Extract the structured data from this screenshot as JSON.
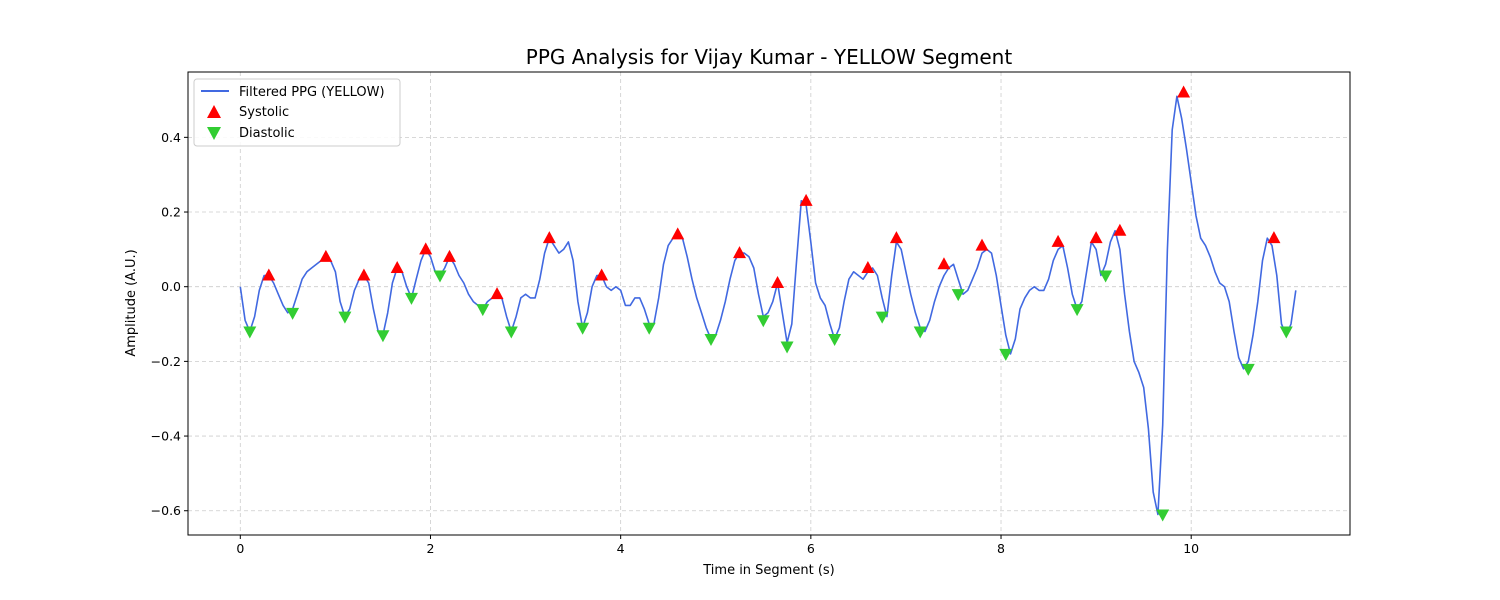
{
  "chart_data": {
    "type": "line",
    "title": "PPG Analysis for Vijay Kumar - YELLOW Segment",
    "xlabel": "Time in Segment (s)",
    "ylabel": "Amplitude (A.U.)",
    "xlim": [
      -0.55,
      11.67
    ],
    "ylim": [
      -0.665,
      0.575
    ],
    "xticks": [
      0,
      2,
      4,
      6,
      8,
      10
    ],
    "xtick_labels": [
      "0",
      "2",
      "4",
      "6",
      "8",
      "10"
    ],
    "yticks": [
      -0.6,
      -0.4,
      -0.2,
      0.0,
      0.2,
      0.4
    ],
    "ytick_labels": [
      "−0.6",
      "−0.4",
      "−0.2",
      "0.0",
      "0.2",
      "0.4"
    ],
    "grid": true,
    "legend_position": "upper-left",
    "colors": {
      "line": "#4169e1",
      "systolic": "#ff0000",
      "diastolic": "#32cd32"
    },
    "series": [
      {
        "name": "Filtered PPG (YELLOW)",
        "kind": "line",
        "x": [
          0,
          0.05,
          0.1,
          0.15,
          0.2,
          0.25,
          0.3,
          0.35,
          0.4,
          0.45,
          0.5,
          0.55,
          0.6,
          0.65,
          0.7,
          0.75,
          0.8,
          0.85,
          0.9,
          0.95,
          1.0,
          1.05,
          1.1,
          1.15,
          1.2,
          1.25,
          1.3,
          1.35,
          1.4,
          1.45,
          1.5,
          1.55,
          1.6,
          1.65,
          1.7,
          1.75,
          1.8,
          1.85,
          1.9,
          1.95,
          2.0,
          2.05,
          2.1,
          2.15,
          2.2,
          2.25,
          2.3,
          2.35,
          2.4,
          2.45,
          2.5,
          2.55,
          2.6,
          2.65,
          2.7,
          2.75,
          2.8,
          2.85,
          2.9,
          2.95,
          3.0,
          3.05,
          3.1,
          3.15,
          3.2,
          3.25,
          3.3,
          3.35,
          3.4,
          3.45,
          3.5,
          3.55,
          3.6,
          3.65,
          3.7,
          3.75,
          3.8,
          3.85,
          3.9,
          3.95,
          4.0,
          4.05,
          4.1,
          4.15,
          4.2,
          4.25,
          4.3,
          4.35,
          4.4,
          4.45,
          4.5,
          4.55,
          4.6,
          4.65,
          4.7,
          4.75,
          4.8,
          4.85,
          4.9,
          4.95,
          5.0,
          5.05,
          5.1,
          5.15,
          5.2,
          5.25,
          5.3,
          5.35,
          5.4,
          5.45,
          5.5,
          5.55,
          5.6,
          5.65,
          5.7,
          5.75,
          5.8,
          5.85,
          5.9,
          5.95,
          6.0,
          6.05,
          6.1,
          6.15,
          6.2,
          6.25,
          6.3,
          6.35,
          6.4,
          6.45,
          6.5,
          6.55,
          6.6,
          6.65,
          6.7,
          6.75,
          6.8,
          6.85,
          6.9,
          6.95,
          7.0,
          7.05,
          7.1,
          7.15,
          7.2,
          7.25,
          7.3,
          7.35,
          7.4,
          7.45,
          7.5,
          7.55,
          7.6,
          7.65,
          7.7,
          7.75,
          7.8,
          7.85,
          7.9,
          7.95,
          8.0,
          8.05,
          8.1,
          8.15,
          8.2,
          8.25,
          8.3,
          8.35,
          8.4,
          8.45,
          8.5,
          8.55,
          8.6,
          8.65,
          8.7,
          8.75,
          8.8,
          8.85,
          8.9,
          8.95,
          9.0,
          9.05,
          9.1,
          9.15,
          9.2,
          9.25,
          9.3,
          9.35,
          9.4,
          9.45,
          9.5,
          9.55,
          9.6,
          9.65,
          9.7,
          9.75,
          9.8,
          9.85,
          9.9,
          9.95,
          10.0,
          10.05,
          10.1,
          10.15,
          10.2,
          10.25,
          10.3,
          10.35,
          10.4,
          10.45,
          10.5,
          10.55,
          10.6,
          10.65,
          10.7,
          10.75,
          10.8,
          10.85,
          10.9,
          10.95,
          11.0,
          11.05,
          11.1
        ],
        "y": [
          0.0,
          -0.09,
          -0.12,
          -0.08,
          -0.01,
          0.03,
          0.03,
          0.01,
          -0.02,
          -0.05,
          -0.07,
          -0.06,
          -0.02,
          0.02,
          0.04,
          0.05,
          0.06,
          0.07,
          0.08,
          0.07,
          0.04,
          -0.04,
          -0.08,
          -0.06,
          -0.01,
          0.02,
          0.03,
          0.01,
          -0.06,
          -0.12,
          -0.13,
          -0.07,
          0.01,
          0.05,
          0.04,
          0.0,
          -0.03,
          0.02,
          0.07,
          0.1,
          0.08,
          0.04,
          0.03,
          0.05,
          0.08,
          0.06,
          0.03,
          0.01,
          -0.02,
          -0.04,
          -0.05,
          -0.06,
          -0.04,
          -0.03,
          -0.02,
          -0.03,
          -0.08,
          -0.12,
          -0.08,
          -0.03,
          -0.02,
          -0.03,
          -0.03,
          0.02,
          0.09,
          0.13,
          0.11,
          0.09,
          0.1,
          0.12,
          0.07,
          -0.04,
          -0.11,
          -0.07,
          0.0,
          0.03,
          0.03,
          0.0,
          -0.01,
          0.0,
          -0.01,
          -0.05,
          -0.05,
          -0.03,
          -0.03,
          -0.06,
          -0.1,
          -0.1,
          -0.03,
          0.06,
          0.11,
          0.13,
          0.14,
          0.13,
          0.08,
          0.02,
          -0.03,
          -0.07,
          -0.11,
          -0.14,
          -0.13,
          -0.09,
          -0.04,
          0.02,
          0.07,
          0.09,
          0.09,
          0.08,
          0.05,
          -0.02,
          -0.08,
          -0.07,
          -0.04,
          0.01,
          -0.07,
          -0.15,
          -0.1,
          0.07,
          0.23,
          0.22,
          0.12,
          0.01,
          -0.03,
          -0.05,
          -0.1,
          -0.14,
          -0.11,
          -0.04,
          0.02,
          0.04,
          0.03,
          0.02,
          0.04,
          0.05,
          0.03,
          -0.03,
          -0.08,
          0.03,
          0.12,
          0.1,
          0.04,
          -0.02,
          -0.07,
          -0.11,
          -0.12,
          -0.09,
          -0.04,
          0.0,
          0.03,
          0.05,
          0.06,
          0.02,
          -0.02,
          -0.01,
          0.02,
          0.05,
          0.09,
          0.1,
          0.09,
          0.03,
          -0.05,
          -0.13,
          -0.18,
          -0.14,
          -0.06,
          -0.03,
          -0.01,
          0.0,
          -0.01,
          -0.01,
          0.02,
          0.07,
          0.1,
          0.11,
          0.05,
          -0.02,
          -0.06,
          -0.04,
          0.04,
          0.12,
          0.1,
          0.03,
          0.06,
          0.12,
          0.15,
          0.1,
          -0.02,
          -0.12,
          -0.2,
          -0.23,
          -0.27,
          -0.38,
          -0.55,
          -0.61,
          -0.37,
          0.1,
          0.42,
          0.51,
          0.45,
          0.37,
          0.28,
          0.19,
          0.13,
          0.11,
          0.08,
          0.04,
          0.01,
          0.0,
          -0.04,
          -0.12,
          -0.19,
          -0.22,
          -0.2,
          -0.13,
          -0.04,
          0.07,
          0.13,
          0.11,
          0.03,
          -0.1,
          -0.13,
          -0.1,
          -0.01
        ]
      },
      {
        "name": "Systolic",
        "kind": "scatter",
        "marker": "triangle-up",
        "x": [
          0.3,
          0.9,
          1.3,
          1.65,
          1.95,
          2.2,
          2.7,
          3.25,
          3.8,
          4.6,
          5.25,
          5.65,
          5.95,
          6.6,
          6.9,
          7.4,
          7.8,
          8.6,
          9.0,
          9.25,
          9.92,
          10.87
        ],
        "y": [
          0.03,
          0.08,
          0.03,
          0.05,
          0.1,
          0.08,
          -0.02,
          0.13,
          0.03,
          0.14,
          0.09,
          0.01,
          0.23,
          0.05,
          0.13,
          0.06,
          0.11,
          0.12,
          0.13,
          0.15,
          0.52,
          0.13
        ]
      },
      {
        "name": "Diastolic",
        "kind": "scatter",
        "marker": "triangle-down",
        "x": [
          0.1,
          0.55,
          1.1,
          1.5,
          1.8,
          2.1,
          2.55,
          2.85,
          3.6,
          4.3,
          4.95,
          5.5,
          5.75,
          6.25,
          6.75,
          7.15,
          7.55,
          8.05,
          8.8,
          9.1,
          9.7,
          10.6,
          11.0
        ],
        "y": [
          -0.12,
          -0.07,
          -0.08,
          -0.13,
          -0.03,
          0.03,
          -0.06,
          -0.12,
          -0.11,
          -0.11,
          -0.14,
          -0.09,
          -0.16,
          -0.14,
          -0.08,
          -0.12,
          -0.02,
          -0.18,
          -0.06,
          0.03,
          -0.61,
          -0.22,
          -0.12
        ]
      }
    ]
  }
}
